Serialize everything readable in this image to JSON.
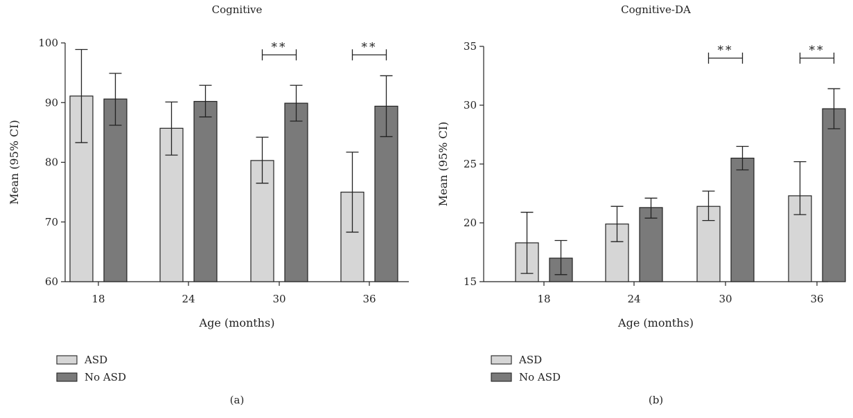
{
  "colors": {
    "asd": "#d6d6d6",
    "no_asd": "#7a7a7a",
    "ink": "#222222"
  },
  "chart_data": [
    {
      "type": "bar",
      "panel": "(a)",
      "title": "Cognitive",
      "xlabel": "Age (months)",
      "ylabel": "Mean (95% CI)",
      "categories": [
        "18",
        "24",
        "30",
        "36"
      ],
      "ylim": [
        60,
        100
      ],
      "yticks": [
        60,
        70,
        80,
        90,
        100
      ],
      "series": [
        {
          "name": "ASD",
          "values": [
            91.1,
            85.7,
            80.3,
            75.0
          ],
          "ci_low": [
            83.3,
            81.2,
            76.5,
            68.3
          ],
          "ci_high": [
            98.9,
            90.1,
            84.2,
            81.7
          ]
        },
        {
          "name": "No ASD",
          "values": [
            90.6,
            90.2,
            89.9,
            89.4
          ],
          "ci_low": [
            86.2,
            87.6,
            86.9,
            84.3
          ],
          "ci_high": [
            94.9,
            92.9,
            92.9,
            94.5
          ]
        }
      ],
      "significance": [
        {
          "category": "30",
          "label": "**",
          "y": 98.0
        },
        {
          "category": "36",
          "label": "**",
          "y": 98.0
        }
      ],
      "legend": [
        "ASD",
        "No ASD"
      ],
      "legend_position": "bottom-left"
    },
    {
      "type": "bar",
      "panel": "(b)",
      "title": "Cognitive-DA",
      "xlabel": "Age (months)",
      "ylabel": "Mean (95% CI)",
      "categories": [
        "18",
        "24",
        "30",
        "36"
      ],
      "ylim": [
        15,
        35
      ],
      "yticks": [
        15,
        20,
        25,
        30,
        35
      ],
      "series": [
        {
          "name": "ASD",
          "values": [
            18.3,
            19.9,
            21.4,
            22.3
          ],
          "ci_low": [
            15.7,
            18.4,
            20.2,
            20.7
          ],
          "ci_high": [
            20.9,
            21.4,
            22.7,
            25.2
          ]
        },
        {
          "name": "No ASD",
          "values": [
            17.0,
            21.3,
            25.5,
            29.7
          ],
          "ci_low": [
            15.6,
            20.4,
            24.5,
            28.0
          ],
          "ci_high": [
            18.5,
            22.1,
            26.5,
            31.4
          ]
        }
      ],
      "significance": [
        {
          "category": "30",
          "label": "**",
          "y": 34.0
        },
        {
          "category": "36",
          "label": "**",
          "y": 34.0
        }
      ],
      "legend": [
        "ASD",
        "No ASD"
      ],
      "legend_position": "bottom-left"
    }
  ]
}
